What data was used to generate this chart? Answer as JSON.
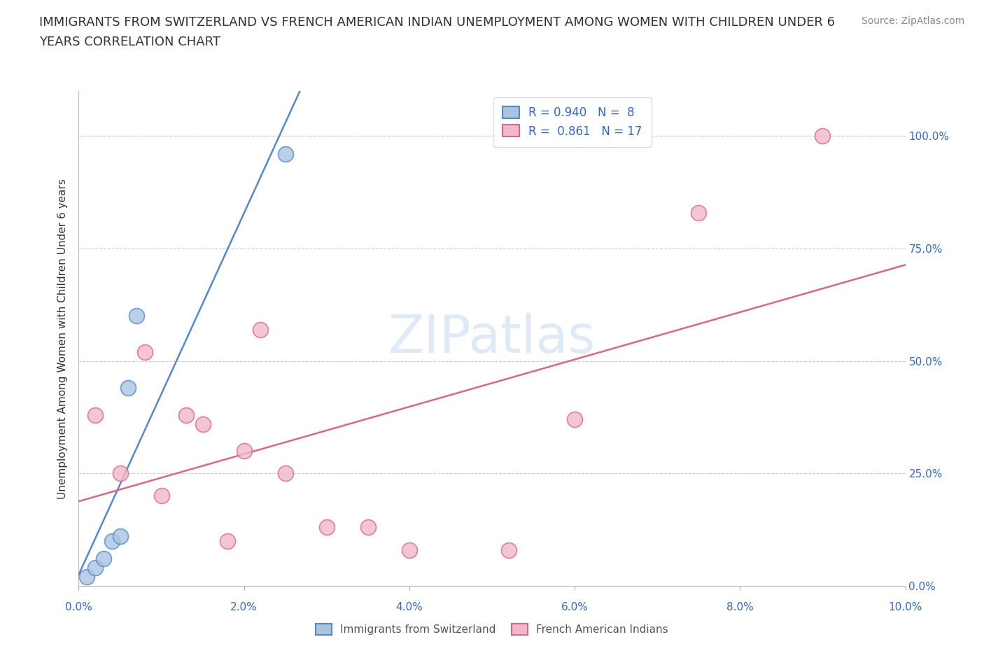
{
  "title_line1": "IMMIGRANTS FROM SWITZERLAND VS FRENCH AMERICAN INDIAN UNEMPLOYMENT AMONG WOMEN WITH CHILDREN UNDER 6",
  "title_line2": "YEARS CORRELATION CHART",
  "source": "Source: ZipAtlas.com",
  "ylabel": "Unemployment Among Women with Children Under 6 years",
  "xlim": [
    0.0,
    0.1
  ],
  "ylim": [
    0.0,
    1.1
  ],
  "yticks": [
    0.0,
    0.25,
    0.5,
    0.75,
    1.0
  ],
  "ytick_labels": [
    "0.0%",
    "25.0%",
    "50.0%",
    "75.0%",
    "100.0%"
  ],
  "xticks": [
    0.0,
    0.02,
    0.04,
    0.06,
    0.08,
    0.1
  ],
  "xtick_labels": [
    "0.0%",
    "2.0%",
    "4.0%",
    "6.0%",
    "8.0%",
    "10.0%"
  ],
  "background_color": "#ffffff",
  "grid_color": "#cccccc",
  "watermark": "ZIPatlas",
  "series": [
    {
      "name": "Immigrants from Switzerland",
      "color": "#5588cc",
      "face_color": "#aac4e0",
      "R": 0.94,
      "N": 8,
      "x": [
        0.001,
        0.002,
        0.003,
        0.004,
        0.005,
        0.006,
        0.007,
        0.025
      ],
      "y": [
        0.02,
        0.04,
        0.06,
        0.1,
        0.11,
        0.44,
        0.6,
        0.96
      ]
    },
    {
      "name": "French American Indians",
      "color": "#dd6688",
      "face_color": "#f0b8c8",
      "R": 0.861,
      "N": 17,
      "x": [
        0.002,
        0.005,
        0.008,
        0.01,
        0.013,
        0.015,
        0.018,
        0.02,
        0.022,
        0.025,
        0.03,
        0.035,
        0.04,
        0.052,
        0.06,
        0.075,
        0.09
      ],
      "y": [
        0.38,
        0.25,
        0.52,
        0.2,
        0.38,
        0.36,
        0.1,
        0.3,
        0.57,
        0.25,
        0.13,
        0.13,
        0.08,
        0.08,
        0.37,
        0.83,
        1.0
      ]
    }
  ],
  "legend_color": "#3366cc",
  "title_color": "#333333",
  "axis_color": "#3366cc",
  "source_color": "#888888",
  "title_fontsize": 13,
  "source_fontsize": 10,
  "ylabel_fontsize": 11,
  "legend_fontsize": 12,
  "tick_fontsize": 11
}
